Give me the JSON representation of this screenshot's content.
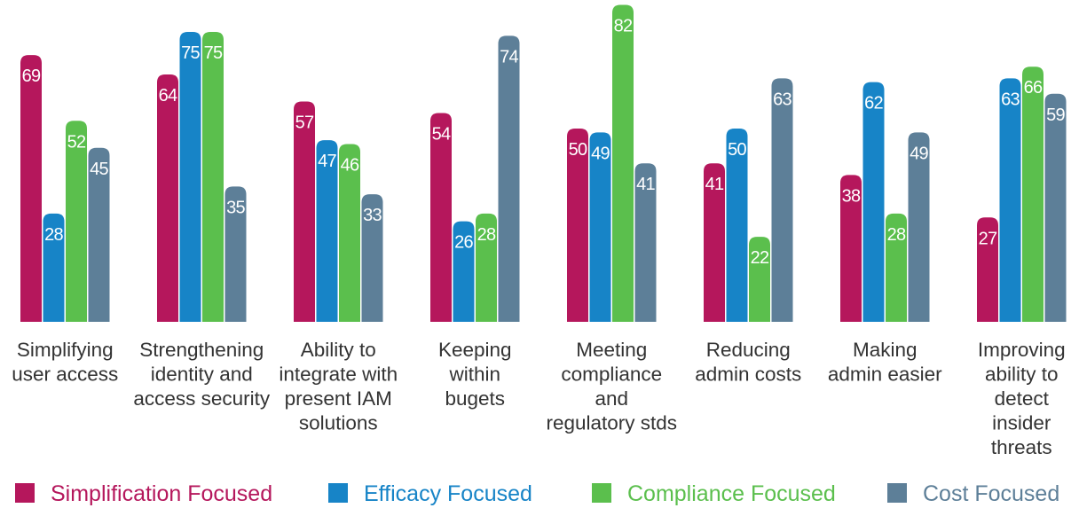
{
  "chart_data": {
    "type": "bar",
    "title": "",
    "xlabel": "",
    "ylabel": "",
    "ylim": [
      0,
      85
    ],
    "grid": false,
    "legend_position": "bottom",
    "categories": [
      "Simplifying user access",
      "Strengthening identity and access security",
      "Ability to integrate with present IAM solutions",
      "Keeping within bugets",
      "Meeting compliance and regulatory stds",
      "Reducing admin costs",
      "Making admin easier",
      "Improving ability to detect insider threats"
    ],
    "category_lines": [
      [
        "Simplifying",
        "user access"
      ],
      [
        "Strengthening",
        "identity and",
        "access security"
      ],
      [
        "Ability to",
        "integrate with",
        "present IAM",
        "solutions"
      ],
      [
        "Keeping",
        "within",
        "bugets"
      ],
      [
        "Meeting",
        "compliance",
        "and",
        "regulatory stds"
      ],
      [
        "Reducing",
        "admin costs"
      ],
      [
        "Making",
        "admin easier"
      ],
      [
        "Improving",
        "ability to",
        "detect",
        "insider",
        "threats"
      ]
    ],
    "series": [
      {
        "name": "Simplification Focused",
        "color": "#b5175c",
        "values": [
          69,
          64,
          57,
          54,
          50,
          41,
          38,
          27
        ]
      },
      {
        "name": "Efficacy Focused",
        "color": "#1784c7",
        "values": [
          28,
          75,
          47,
          26,
          49,
          50,
          62,
          63
        ]
      },
      {
        "name": "Compliance Focused",
        "color": "#5bbf4d",
        "values": [
          52,
          75,
          46,
          28,
          82,
          22,
          28,
          66
        ]
      },
      {
        "name": "Cost Focused",
        "color": "#5d7f98",
        "values": [
          45,
          35,
          33,
          74,
          41,
          63,
          49,
          59
        ]
      }
    ]
  }
}
